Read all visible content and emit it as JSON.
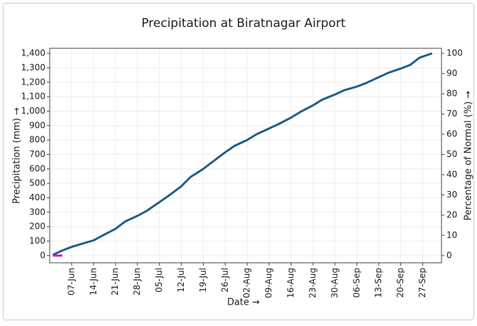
{
  "chart_data": {
    "type": "line",
    "title": "Precipitation at Biratnagar Airport",
    "xlabel": "Date →",
    "ylabel": "Precipitation (mm) →",
    "y2label": "Percentage of Normal (%) →",
    "x": [
      "01-Jun",
      "04-Jun",
      "07-Jun",
      "10-Jun",
      "14-Jun",
      "17-Jun",
      "21-Jun",
      "24-Jun",
      "28-Jun",
      "01-Jul",
      "05-Jul",
      "08-Jul",
      "12-Jul",
      "15-Jul",
      "19-Jul",
      "22-Jul",
      "26-Jul",
      "29-Jul",
      "02-Aug",
      "05-Aug",
      "09-Aug",
      "12-Aug",
      "16-Aug",
      "19-Aug",
      "23-Aug",
      "26-Aug",
      "30-Aug",
      "02-Sep",
      "06-Sep",
      "09-Sep",
      "13-Sep",
      "16-Sep",
      "20-Sep",
      "23-Sep",
      "26-Sep",
      "30-Sep"
    ],
    "series": [
      {
        "color": "#1f5f8b",
        "values": [
          5,
          35,
          60,
          80,
          105,
          140,
          185,
          235,
          275,
          310,
          370,
          415,
          480,
          545,
          600,
          650,
          715,
          760,
          800,
          840,
          880,
          910,
          955,
          995,
          1040,
          1080,
          1115,
          1145,
          1170,
          1195,
          1235,
          1265,
          1295,
          1320,
          1370,
          1400
        ]
      },
      {
        "color": "#c21cc9",
        "axis": "y2",
        "values": [
          0,
          0,
          null,
          null,
          null,
          null,
          null,
          null,
          null,
          null,
          null,
          null,
          null,
          null,
          null,
          null,
          null,
          null,
          null,
          null,
          null,
          null,
          null,
          null,
          null,
          null,
          null,
          null,
          null,
          null,
          null,
          null,
          null,
          null,
          null,
          null
        ]
      }
    ],
    "xlim": [
      "31-May",
      "03-Oct"
    ],
    "xticks": [
      "07-Jun",
      "14-Jun",
      "21-Jun",
      "28-Jun",
      "05-Jul",
      "12-Jul",
      "19-Jul",
      "26-Jul",
      "02-Aug",
      "09-Aug",
      "16-Aug",
      "23-Aug",
      "30-Aug",
      "06-Sep",
      "13-Sep",
      "20-Sep",
      "27-Sep"
    ],
    "ylim": [
      -50,
      1435
    ],
    "yticks": [
      0,
      100,
      200,
      300,
      400,
      500,
      600,
      700,
      800,
      900,
      {
        "value": 1000,
        "label": "1,000"
      },
      {
        "value": 1100,
        "label": "1,100"
      },
      {
        "value": 1200,
        "label": "1,200"
      },
      {
        "value": 1300,
        "label": "1,300"
      },
      {
        "value": 1400,
        "label": "1,400"
      }
    ],
    "y2lim": [
      -3.57,
      102.5
    ],
    "y2ticks": [
      0,
      10,
      20,
      30,
      40,
      50,
      60,
      70,
      80,
      90,
      100
    ],
    "grid": true
  }
}
